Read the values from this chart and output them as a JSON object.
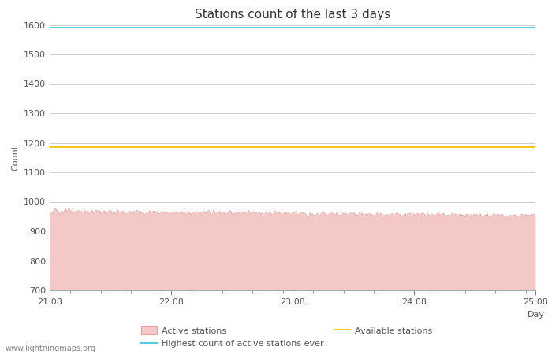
{
  "title": "Stations count of the last 3 days",
  "xlabel": "Day",
  "ylabel": "Count",
  "ylim": [
    700,
    1600
  ],
  "yticks": [
    700,
    800,
    900,
    1000,
    1100,
    1200,
    1300,
    1400,
    1500,
    1600
  ],
  "x_start": 21.08,
  "x_end": 25.08,
  "xticks": [
    21.08,
    22.08,
    23.08,
    24.08,
    25.08
  ],
  "xticklabels": [
    "21.08",
    "22.08",
    "23.08",
    "24.08",
    "25.08"
  ],
  "highest_count_line": 1590,
  "available_stations_line": 1185,
  "active_stations_mean": 968,
  "active_stations_noise": 8,
  "fill_color": "#f5c8c8",
  "line_color": "#e8a0a0",
  "highest_color": "#55ccdd",
  "available_color": "#f5c518",
  "background_color": "#ffffff",
  "grid_color": "#cccccc",
  "watermark": "www.lightningmaps.org",
  "num_points": 1440,
  "title_fontsize": 11,
  "label_fontsize": 8,
  "tick_fontsize": 8,
  "watermark_fontsize": 7
}
